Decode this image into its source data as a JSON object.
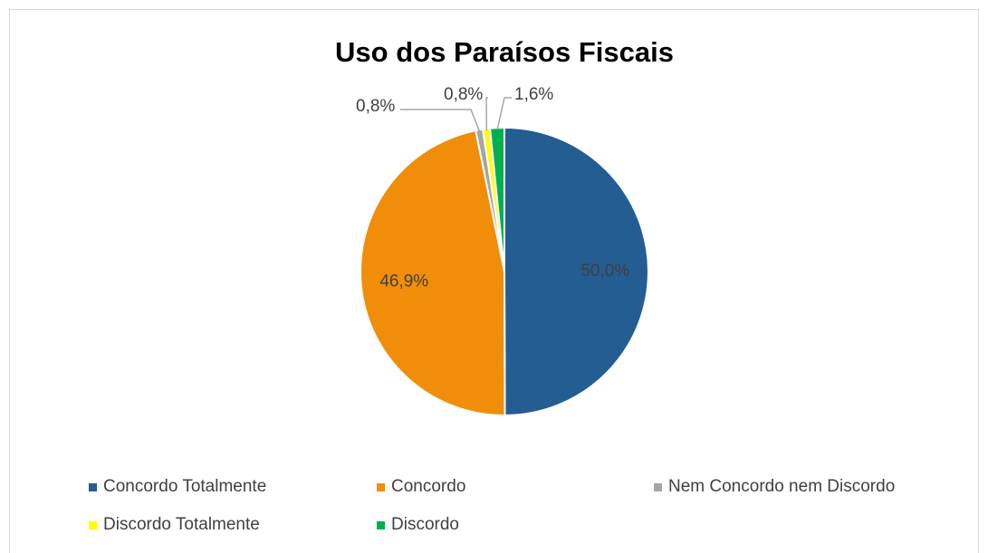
{
  "chart_data": {
    "type": "pie",
    "title": "Uso dos Paraísos Fiscais",
    "categories": [
      "Concordo Totalmente",
      "Concordo",
      "Nem Concordo nem Discordo",
      "Discordo Totalmente",
      "Discordo"
    ],
    "values": [
      50.0,
      46.9,
      0.8,
      0.8,
      1.6
    ],
    "value_labels": [
      "50,0%",
      "46,9%",
      "0,8%",
      "0,8%",
      "1,6%"
    ],
    "colors": [
      "#245d92",
      "#f08e0a",
      "#a5a5a5",
      "#ffff00",
      "#00b050"
    ],
    "legend": "bottom"
  }
}
